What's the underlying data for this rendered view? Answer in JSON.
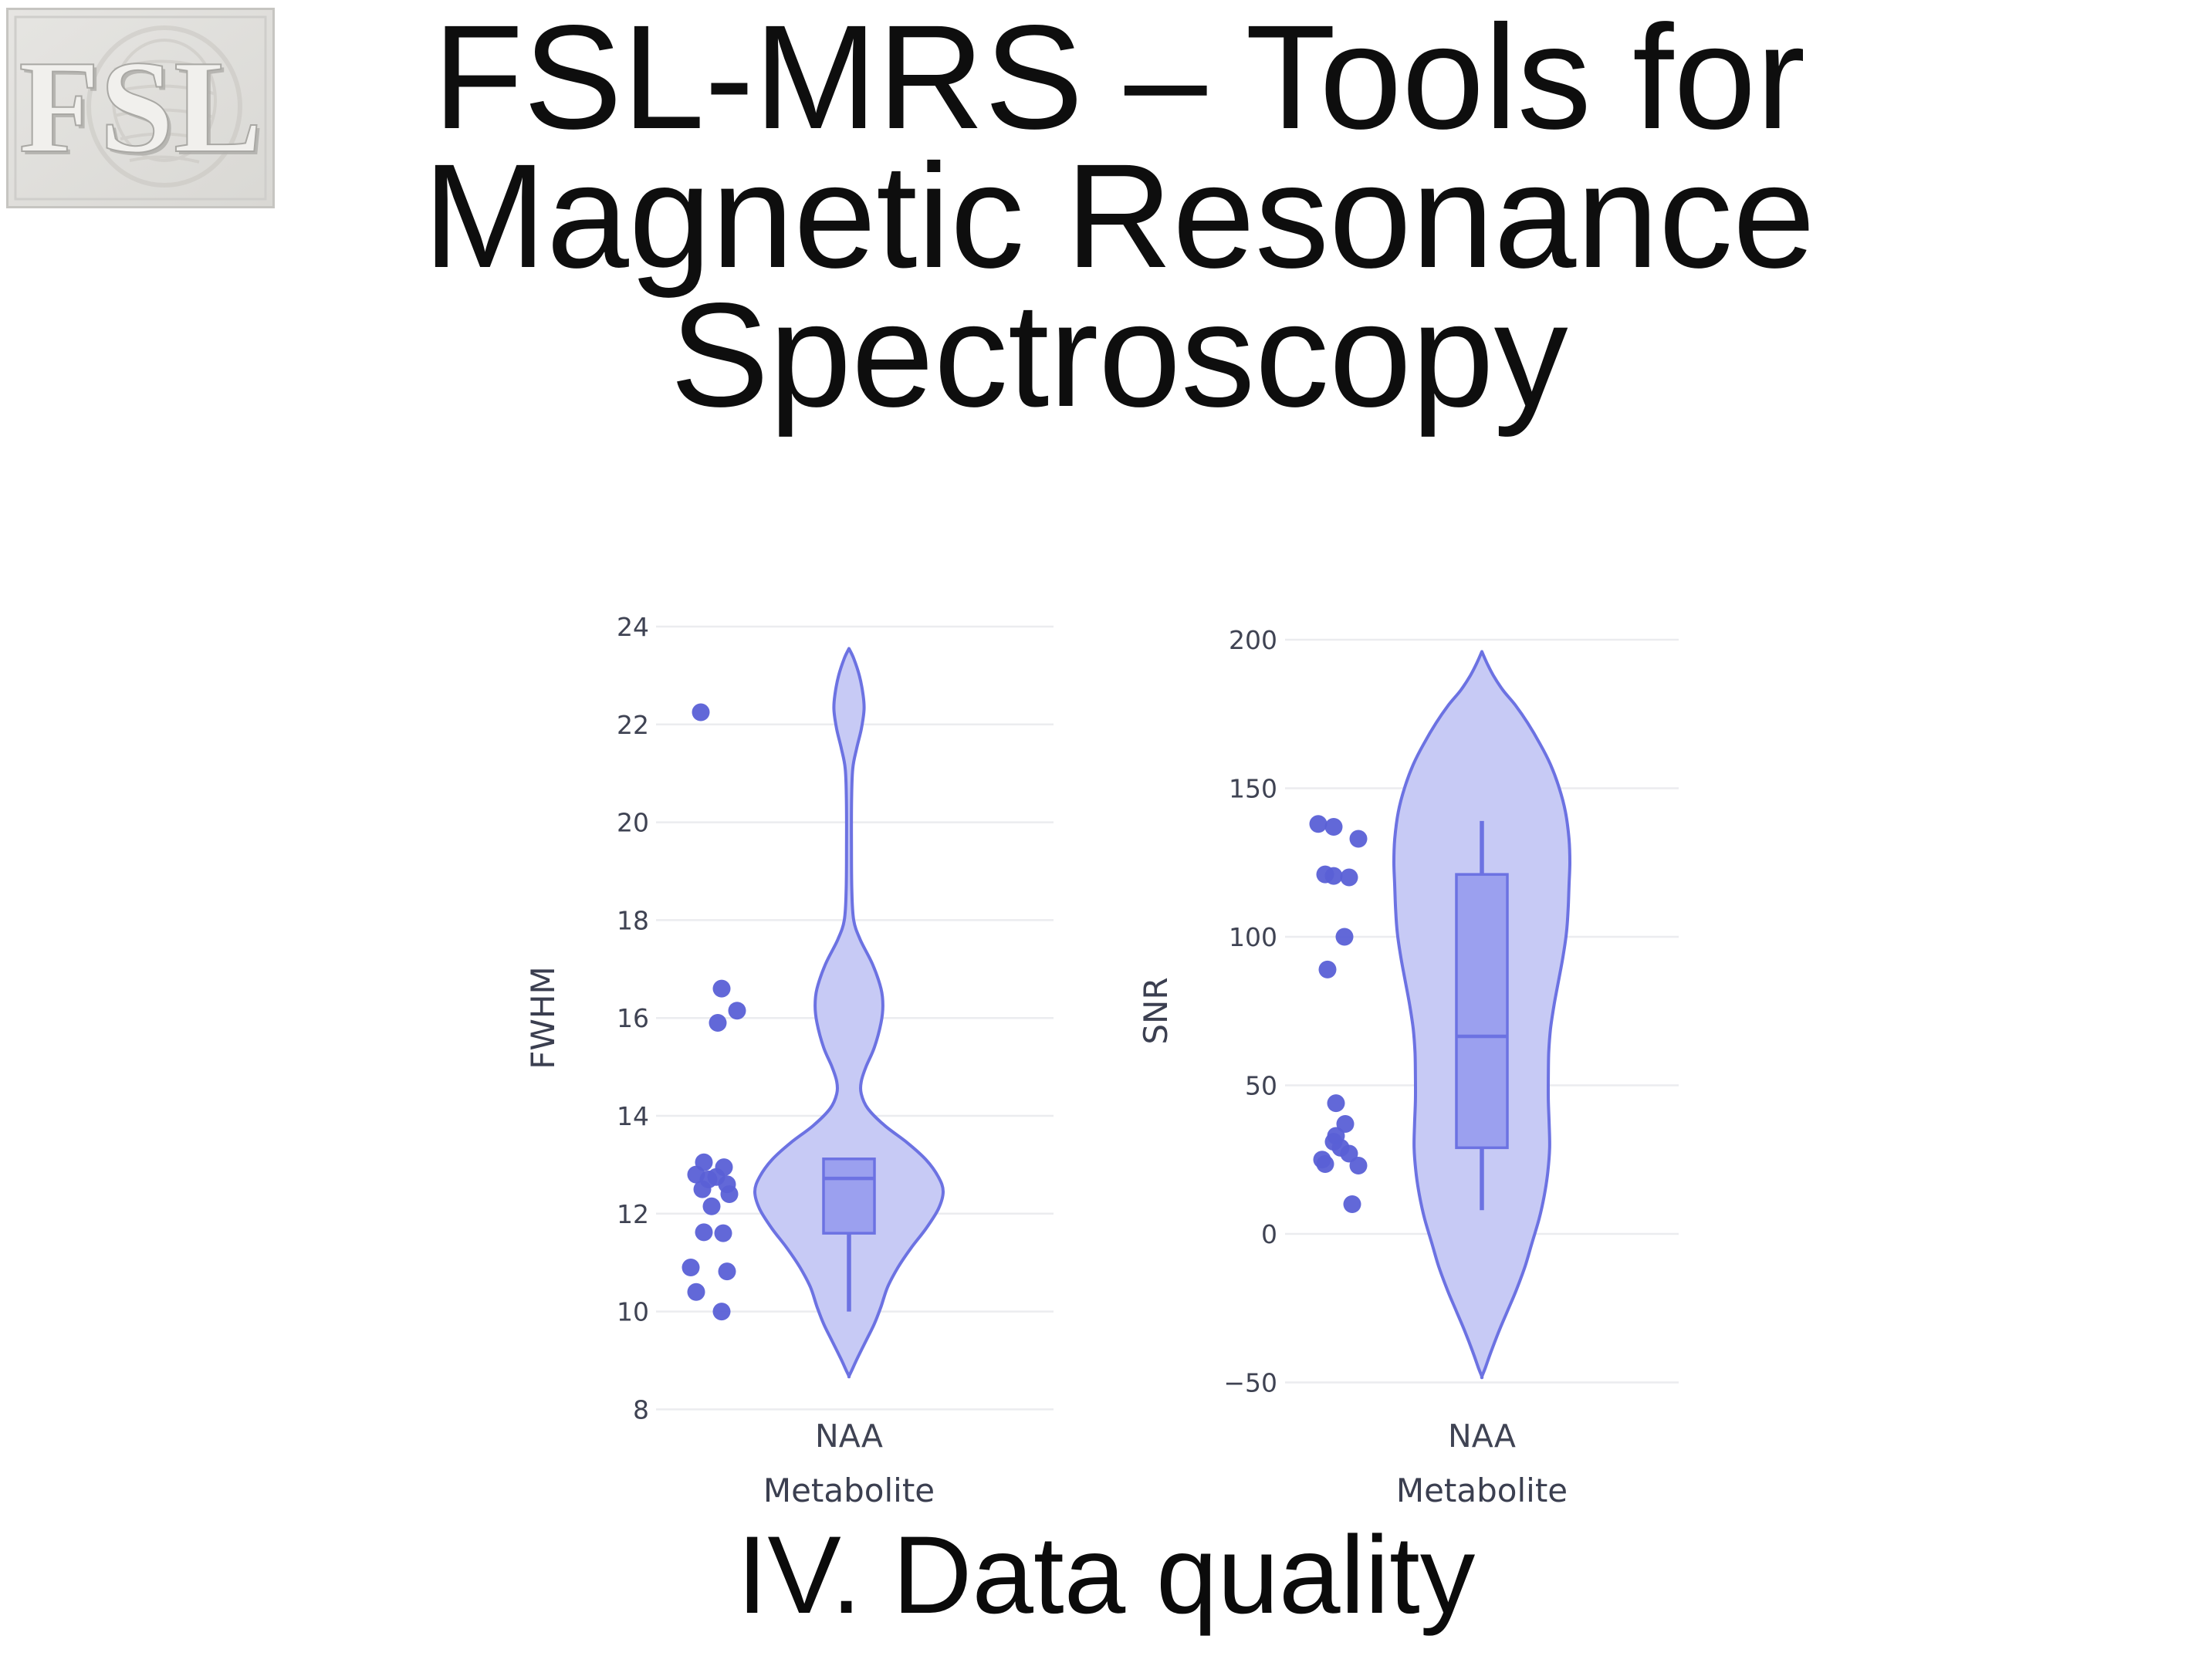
{
  "slide": {
    "title_lines": [
      "FSL-MRS – Tools for",
      "Magnetic Resonance",
      "Spectroscopy"
    ],
    "caption": "IV. Data quality",
    "logo_text": "FSL"
  },
  "colors": {
    "accent": "#636efa",
    "violin_fill": "#c7caf5",
    "violin_stroke": "#6c72e2",
    "box_fill": "#9ba0ef",
    "point": "#5a60d6",
    "gridline": "#ebecef",
    "axis_text": "#3f4353",
    "axis_title_text": "#3b3f50",
    "title_text": "#0e0e0e"
  },
  "chart_data": [
    {
      "type": "violin",
      "title": "",
      "ylabel": "FWHM",
      "xlabel": "Metabolite",
      "category": "NAA",
      "grid": true,
      "legend": false,
      "ylim": [
        8,
        24
      ],
      "y_ticks": [
        {
          "v": 24,
          "label": "24"
        },
        {
          "v": 22,
          "label": "22"
        },
        {
          "v": 20,
          "label": "20"
        },
        {
          "v": 18,
          "label": "18"
        },
        {
          "v": 16,
          "label": "16"
        },
        {
          "v": 14,
          "label": "14"
        },
        {
          "v": 12,
          "label": "12"
        },
        {
          "v": 10,
          "label": "10"
        },
        {
          "v": 8,
          "label": "8"
        }
      ],
      "box": {
        "q1": 11.6,
        "median": 12.72,
        "q3": 13.12,
        "whisker_low": 10.0,
        "whisker_high": null
      },
      "points": [
        [
          22.25,
          -17
        ],
        [
          16.6,
          10
        ],
        [
          16.15,
          30
        ],
        [
          15.9,
          5
        ],
        [
          13.05,
          -13
        ],
        [
          12.95,
          13
        ],
        [
          12.8,
          -23
        ],
        [
          12.75,
          3
        ],
        [
          12.7,
          -7
        ],
        [
          12.6,
          17
        ],
        [
          12.5,
          -15
        ],
        [
          12.4,
          20
        ],
        [
          12.15,
          -3
        ],
        [
          11.62,
          -13
        ],
        [
          11.6,
          12
        ],
        [
          10.9,
          -30
        ],
        [
          10.82,
          17
        ],
        [
          10.4,
          -23
        ],
        [
          10.0,
          10
        ]
      ],
      "violin_profile": [
        [
          23.55,
          0.0
        ],
        [
          23.35,
          0.05
        ],
        [
          23.0,
          0.11
        ],
        [
          22.6,
          0.15
        ],
        [
          22.3,
          0.16
        ],
        [
          21.9,
          0.13
        ],
        [
          21.5,
          0.08
        ],
        [
          21.1,
          0.04
        ],
        [
          20.5,
          0.028
        ],
        [
          19.5,
          0.026
        ],
        [
          18.6,
          0.03
        ],
        [
          18.0,
          0.05
        ],
        [
          17.6,
          0.12
        ],
        [
          17.1,
          0.25
        ],
        [
          16.6,
          0.34
        ],
        [
          16.25,
          0.36
        ],
        [
          15.9,
          0.34
        ],
        [
          15.4,
          0.27
        ],
        [
          15.0,
          0.18
        ],
        [
          14.7,
          0.13
        ],
        [
          14.45,
          0.13
        ],
        [
          14.15,
          0.2
        ],
        [
          13.8,
          0.38
        ],
        [
          13.45,
          0.62
        ],
        [
          13.1,
          0.82
        ],
        [
          12.75,
          0.95
        ],
        [
          12.45,
          1.0
        ],
        [
          12.1,
          0.95
        ],
        [
          11.7,
          0.82
        ],
        [
          11.3,
          0.66
        ],
        [
          10.9,
          0.52
        ],
        [
          10.5,
          0.41
        ],
        [
          10.1,
          0.34
        ],
        [
          9.75,
          0.27
        ],
        [
          9.4,
          0.18
        ],
        [
          9.05,
          0.09
        ],
        [
          8.8,
          0.03
        ],
        [
          8.68,
          0.0
        ]
      ]
    },
    {
      "type": "violin",
      "title": "",
      "ylabel": "SNR",
      "xlabel": "Metabolite",
      "category": "NAA",
      "grid": true,
      "legend": false,
      "ylim": [
        -50,
        200
      ],
      "y_ticks": [
        {
          "v": 200,
          "label": "200"
        },
        {
          "v": 150,
          "label": "150"
        },
        {
          "v": 100,
          "label": "100"
        },
        {
          "v": 50,
          "label": "50"
        },
        {
          "v": 0,
          "label": "0"
        },
        {
          "v": -50,
          "label": "−50"
        }
      ],
      "box": {
        "q1": 29,
        "median": 66.5,
        "q3": 121,
        "whisker_low": 8,
        "whisker_high": 139
      },
      "points": [
        [
          138,
          -27
        ],
        [
          137,
          -7
        ],
        [
          133,
          25
        ],
        [
          121,
          -18
        ],
        [
          120.5,
          -7
        ],
        [
          120,
          13
        ],
        [
          100,
          7
        ],
        [
          89,
          -15
        ],
        [
          44,
          -4
        ],
        [
          37,
          8
        ],
        [
          33,
          -4
        ],
        [
          31,
          -7
        ],
        [
          29,
          2
        ],
        [
          27,
          13
        ],
        [
          25,
          -22
        ],
        [
          23.5,
          -18
        ],
        [
          23,
          25
        ],
        [
          10,
          17
        ]
      ],
      "violin_profile": [
        [
          196,
          0.0
        ],
        [
          192,
          0.06
        ],
        [
          188,
          0.13
        ],
        [
          183,
          0.24
        ],
        [
          178,
          0.38
        ],
        [
          172,
          0.52
        ],
        [
          165,
          0.66
        ],
        [
          158,
          0.78
        ],
        [
          150,
          0.88
        ],
        [
          142,
          0.95
        ],
        [
          133,
          0.99
        ],
        [
          125,
          1.0
        ],
        [
          117,
          0.99
        ],
        [
          109,
          0.98
        ],
        [
          101,
          0.96
        ],
        [
          93,
          0.92
        ],
        [
          85,
          0.87
        ],
        [
          77,
          0.82
        ],
        [
          69,
          0.78
        ],
        [
          61,
          0.76
        ],
        [
          53,
          0.755
        ],
        [
          45,
          0.755
        ],
        [
          37,
          0.765
        ],
        [
          29,
          0.77
        ],
        [
          21,
          0.75
        ],
        [
          13,
          0.71
        ],
        [
          5,
          0.65
        ],
        [
          -3,
          0.57
        ],
        [
          -11,
          0.49
        ],
        [
          -19,
          0.39
        ],
        [
          -26,
          0.29
        ],
        [
          -33,
          0.19
        ],
        [
          -40,
          0.1
        ],
        [
          -45,
          0.04
        ],
        [
          -48,
          0.0
        ]
      ]
    }
  ]
}
